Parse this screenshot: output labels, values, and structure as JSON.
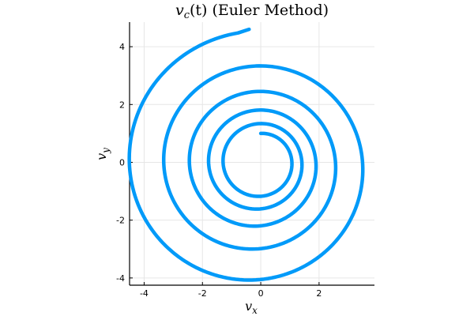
{
  "chart_data": {
    "type": "line",
    "title": "v_c(t) (Euler Method)",
    "title_parts": {
      "var": "v",
      "sub": "c",
      "rest": "(t) (Euler Method)"
    },
    "xlabel": "v_x",
    "xlabel_parts": {
      "var": "v",
      "sub": "x"
    },
    "ylabel": "v_y",
    "ylabel_parts": {
      "var": "v",
      "sub": "y"
    },
    "xlim": [
      -4.5,
      3.9
    ],
    "ylim": [
      -4.25,
      4.85
    ],
    "xticks": [
      -4,
      -2,
      0,
      2
    ],
    "yticks": [
      -4,
      -2,
      0,
      2,
      4
    ],
    "xtick_labels": [
      "-4",
      "-2",
      "0",
      "2"
    ],
    "ytick_labels": [
      "-4",
      "-2",
      "0",
      "2",
      "4"
    ],
    "grid": true,
    "legend": "none",
    "aspect": "equal",
    "series": [
      {
        "color": "#009af9",
        "start": [
          0,
          1
        ],
        "end": [
          -0.4,
          4.6
        ],
        "turns": 4.75,
        "direction": "clockwise"
      }
    ]
  }
}
